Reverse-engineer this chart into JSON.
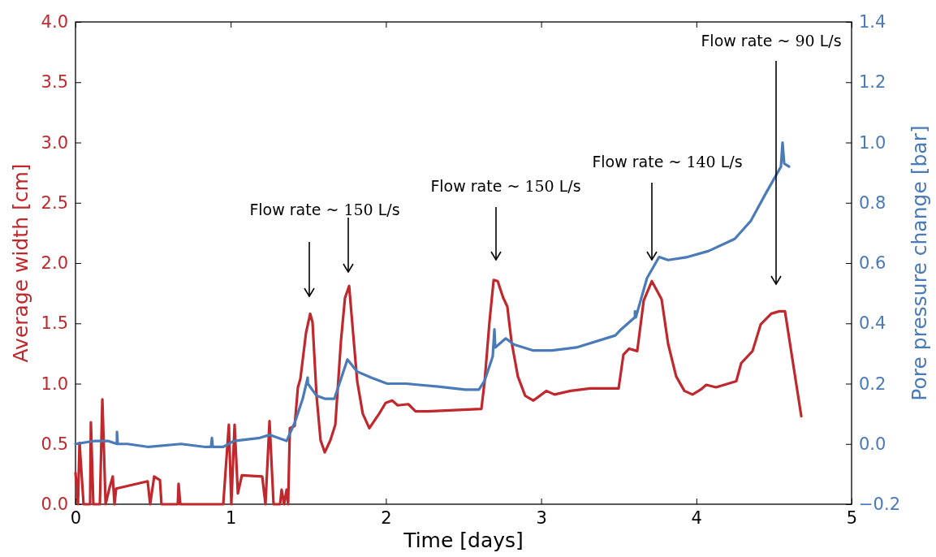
{
  "chart_data": {
    "type": "line",
    "xlabel": "Time [days]",
    "ylabel": "Average width [cm]",
    "y2label": "Pore pressure change [bar]",
    "xlim": [
      0,
      5
    ],
    "xticks": [
      0,
      1,
      2,
      3,
      4,
      5
    ],
    "ylim": [
      0,
      4
    ],
    "yticks": [
      {
        "value": 0,
        "label": "0.0"
      },
      {
        "value": 0.5,
        "label": "0.5"
      },
      {
        "value": 1,
        "label": "1.0"
      },
      {
        "value": 1.5,
        "label": "1.5"
      },
      {
        "value": 2,
        "label": "2.0"
      },
      {
        "value": 2.5,
        "label": "2.5"
      },
      {
        "value": 3,
        "label": "3.0"
      },
      {
        "value": 3.5,
        "label": "3.5"
      },
      {
        "value": 4,
        "label": "4.0"
      }
    ],
    "y2lim": [
      -0.2,
      1.4
    ],
    "y2ticks": [
      {
        "value": -0.2,
        "label": "−0.2"
      },
      {
        "value": 0,
        "label": "0.0"
      },
      {
        "value": 0.2,
        "label": "0.2"
      },
      {
        "value": 0.4,
        "label": "0.4"
      },
      {
        "value": 0.6,
        "label": "0.6"
      },
      {
        "value": 0.8,
        "label": "0.8"
      },
      {
        "value": 1,
        "label": "1.0"
      },
      {
        "value": 1.2,
        "label": "1.2"
      },
      {
        "value": 1.4,
        "label": "1.4"
      }
    ],
    "grid": false,
    "line_style": "solid",
    "marker": "none",
    "series": [
      {
        "color": "#c0282d",
        "x": [
          0,
          0.016,
          0.026,
          0.052,
          0.094,
          0.099,
          0.115,
          0.157,
          0.173,
          0.194,
          0.22,
          0.24,
          0.251,
          0.262,
          0.465,
          0.481,
          0.507,
          0.544,
          0.554,
          0.659,
          0.664,
          0.675,
          0.952,
          0.988,
          1.004,
          1.025,
          1.046,
          1.072,
          1.203,
          1.224,
          1.25,
          1.276,
          1.318,
          1.328,
          1.344,
          1.36,
          1.37,
          1.381,
          1.412,
          1.433,
          1.449,
          1.485,
          1.512,
          1.527,
          1.553,
          1.579,
          1.606,
          1.642,
          1.674,
          1.71,
          1.736,
          1.763,
          1.778,
          1.815,
          1.851,
          1.893,
          1.956,
          1.998,
          2.04,
          2.076,
          2.144,
          2.191,
          2.27,
          2.615,
          2.636,
          2.667,
          2.694,
          2.72,
          2.756,
          2.782,
          2.809,
          2.85,
          2.897,
          2.95,
          2.992,
          3.033,
          3.086,
          3.19,
          3.316,
          3.499,
          3.53,
          3.567,
          3.619,
          3.661,
          3.713,
          3.776,
          3.818,
          3.87,
          3.923,
          3.975,
          4.027,
          4.064,
          4.127,
          4.257,
          4.289,
          4.362,
          4.414,
          4.482,
          4.535,
          4.571,
          4.676
        ],
        "values": [
          0.26,
          0,
          0.51,
          0,
          0,
          0.68,
          0,
          0,
          0.87,
          0,
          0.14,
          0.23,
          0,
          0.13,
          0.19,
          0,
          0.23,
          0.2,
          0,
          0,
          0.17,
          0,
          0,
          0.66,
          0,
          0.66,
          0.09,
          0.24,
          0.23,
          0,
          0.69,
          0,
          0,
          0.12,
          0,
          0.12,
          0,
          0.63,
          0.65,
          0.97,
          1.04,
          1.42,
          1.58,
          1.51,
          0.9,
          0.53,
          0.43,
          0.53,
          0.66,
          1.35,
          1.71,
          1.81,
          1.58,
          1.02,
          0.75,
          0.63,
          0.75,
          0.84,
          0.86,
          0.82,
          0.83,
          0.77,
          0.77,
          0.79,
          1.02,
          1.51,
          1.86,
          1.85,
          1.71,
          1.64,
          1.35,
          1.06,
          0.9,
          0.86,
          0.9,
          0.94,
          0.91,
          0.94,
          0.96,
          0.96,
          1.24,
          1.29,
          1.27,
          1.69,
          1.85,
          1.7,
          1.33,
          1.06,
          0.94,
          0.91,
          0.95,
          0.99,
          0.97,
          1.02,
          1.17,
          1.27,
          1.49,
          1.58,
          1.6,
          1.6,
          0.73
        ]
      },
      {
        "color": "#4a7ab8",
        "axis": "y2",
        "x": [
          0,
          0.126,
          0.209,
          0.267,
          0.267,
          0.272,
          0.335,
          0.471,
          0.68,
          0.837,
          0.873,
          0.879,
          0.884,
          0.952,
          1.02,
          1.187,
          1.25,
          1.36,
          1.412,
          1.464,
          1.496,
          1.497,
          1.553,
          1.606,
          1.668,
          1.752,
          1.815,
          1.904,
          2.008,
          2.129,
          2.338,
          2.51,
          2.599,
          2.636,
          2.688,
          2.699,
          2.704,
          2.772,
          2.824,
          2.95,
          3.07,
          3.227,
          3.478,
          3.515,
          3.604,
          3.605,
          3.61,
          3.682,
          3.76,
          3.818,
          3.943,
          4.079,
          4.247,
          4.351,
          4.446,
          4.545,
          4.555,
          4.566,
          4.597
        ],
        "values": [
          0,
          0.01,
          0.01,
          0,
          0.04,
          0,
          0,
          -0.01,
          0,
          -0.01,
          -0.01,
          0.02,
          -0.01,
          -0.01,
          0.01,
          0.02,
          0.03,
          0.01,
          0.07,
          0.15,
          0.22,
          0.2,
          0.16,
          0.15,
          0.15,
          0.28,
          0.24,
          0.22,
          0.2,
          0.2,
          0.19,
          0.18,
          0.18,
          0.21,
          0.29,
          0.38,
          0.32,
          0.35,
          0.33,
          0.31,
          0.31,
          0.32,
          0.36,
          0.38,
          0.42,
          0.44,
          0.42,
          0.55,
          0.62,
          0.61,
          0.62,
          0.64,
          0.68,
          0.74,
          0.83,
          0.92,
          1.0,
          0.93,
          0.92
        ]
      }
    ],
    "annotations": [
      "Flow rate ~ 150 L/s",
      "Flow rate ~ 150 L/s",
      "Flow rate ~ 140 L/s",
      "Flow rate ~ 90 L/s"
    ]
  }
}
